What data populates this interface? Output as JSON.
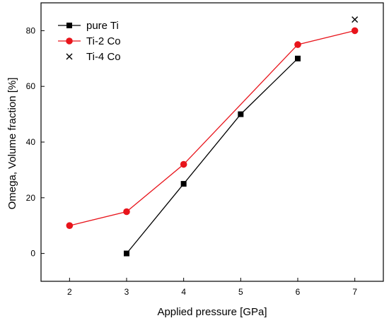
{
  "chart_data": {
    "type": "line",
    "title": "",
    "xlabel": "Applied pressure [GPa]",
    "ylabel": "Omega, Volume fraction [%]",
    "xlim": [
      1.5,
      7.5
    ],
    "ylim": [
      -10,
      90
    ],
    "x_ticks": [
      2,
      3,
      4,
      5,
      6,
      7
    ],
    "y_ticks": [
      0,
      20,
      40,
      60,
      80
    ],
    "grid": false,
    "legend_position": "top-left",
    "series": [
      {
        "name": "pure Ti",
        "color": "#000000",
        "marker": "square",
        "line": true,
        "x": [
          3,
          4,
          5,
          6
        ],
        "y": [
          0,
          25,
          50,
          70
        ]
      },
      {
        "name": "Ti-2 Co",
        "color": "#e8141b",
        "marker": "circle",
        "line": true,
        "x": [
          2,
          3,
          4,
          6,
          7
        ],
        "y": [
          10,
          15,
          32,
          75,
          80
        ]
      },
      {
        "name": "Ti-4 Co",
        "color": "#000000",
        "marker": "x",
        "line": false,
        "x": [
          7
        ],
        "y": [
          84
        ]
      }
    ]
  }
}
